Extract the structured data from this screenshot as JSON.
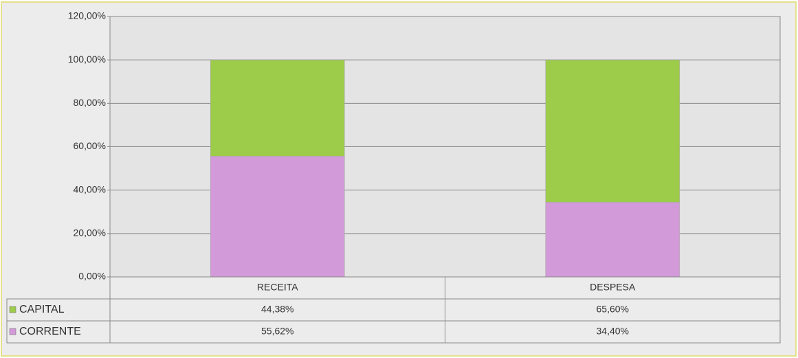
{
  "chart_data": {
    "type": "stacked_bar",
    "categories": [
      "RECEITA",
      "DESPESA"
    ],
    "series": [
      {
        "name": "CAPITAL",
        "color": "#9dcb4a",
        "values": [
          44.38,
          65.6
        ],
        "value_labels": [
          "44,38%",
          "65,60%"
        ]
      },
      {
        "name": "CORRENTE",
        "color": "#d39ad9",
        "values": [
          55.62,
          34.4
        ],
        "value_labels": [
          "55,62%",
          "34,40%"
        ]
      }
    ],
    "ylim": [
      0,
      120
    ],
    "yticks": [
      {
        "value": 0,
        "label": "0,00%"
      },
      {
        "value": 20,
        "label": "20,00%"
      },
      {
        "value": 40,
        "label": "40,00%"
      },
      {
        "value": 60,
        "label": "60,00%"
      },
      {
        "value": 80,
        "label": "80,00%"
      },
      {
        "value": 100,
        "label": "100,00%"
      },
      {
        "value": 120,
        "label": "120,00%"
      }
    ],
    "grid": true
  }
}
